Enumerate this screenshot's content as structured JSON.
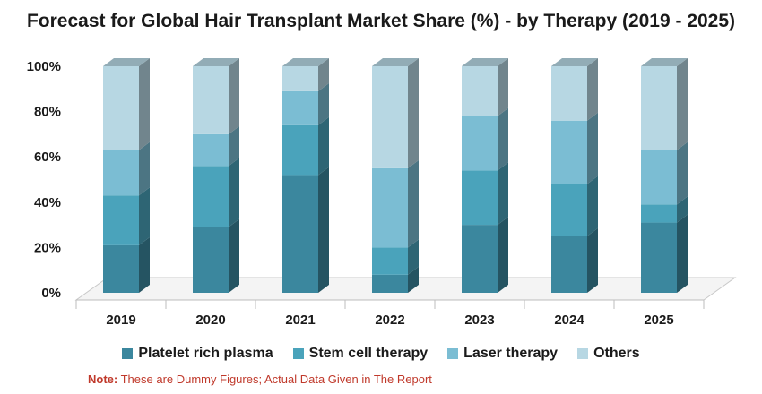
{
  "chart_data": {
    "type": "bar",
    "stacked": true,
    "title": "Forecast for Global Hair Transplant Market Share (%)  - by Therapy (2019  - 2025)",
    "categories": [
      "2019",
      "2020",
      "2021",
      "2022",
      "2023",
      "2024",
      "2025"
    ],
    "series": [
      {
        "name": "Platelet rich plasma",
        "color": "#3b879e",
        "values": [
          21,
          29,
          52,
          8,
          30,
          25,
          31
        ]
      },
      {
        "name": "Stem cell therapy",
        "color": "#4aa3bb",
        "values": [
          22,
          27,
          22,
          12,
          24,
          23,
          8
        ]
      },
      {
        "name": "Laser therapy",
        "color": "#7bbdd3",
        "values": [
          20,
          14,
          15,
          35,
          24,
          28,
          24
        ]
      },
      {
        "name": "Others",
        "color": "#b7d7e3",
        "values": [
          37,
          30,
          11,
          45,
          22,
          24,
          37
        ]
      }
    ],
    "ylim": [
      0,
      100
    ],
    "yticks": [
      "0%",
      "20%",
      "40%",
      "60%",
      "80%",
      "100%"
    ],
    "grid": false,
    "legend": "bottom"
  },
  "note": {
    "label": "Note:",
    "text": " These are Dummy Figures; Actual Data Given in The Report"
  }
}
